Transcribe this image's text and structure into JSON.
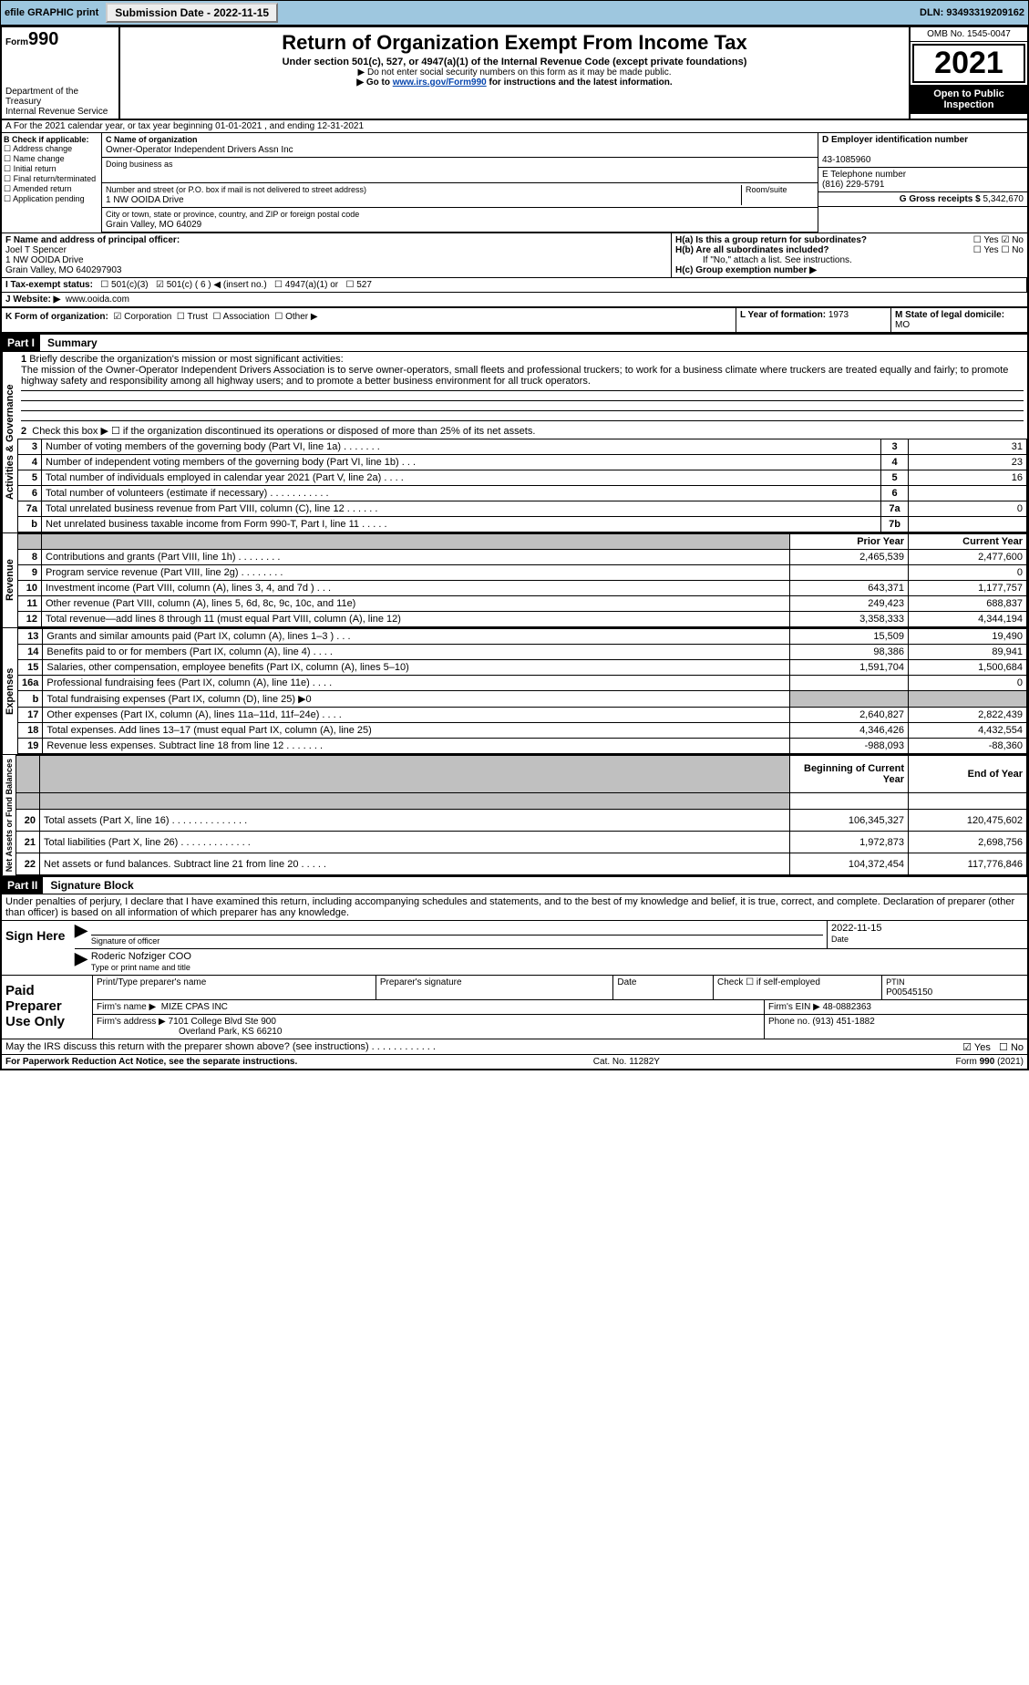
{
  "topbar": {
    "efile_label": "efile GRAPHIC print",
    "submission_btn": "Submission Date - 2022-11-15",
    "dln": "DLN: 93493319209162"
  },
  "header": {
    "form_label": "Form",
    "form_number": "990",
    "title": "Return of Organization Exempt From Income Tax",
    "sub1": "Under section 501(c), 527, or 4947(a)(1) of the Internal Revenue Code (except private foundations)",
    "sub2": "▶ Do not enter social security numbers on this form as it may be made public.",
    "sub3": "▶ Go to www.irs.gov/Form990 for instructions and the latest information.",
    "dept": "Department of the Treasury",
    "irs": "Internal Revenue Service",
    "omb": "OMB No. 1545-0047",
    "year": "2021",
    "open_public": "Open to Public Inspection"
  },
  "sectionA": {
    "calendar_line": "A For the 2021 calendar year, or tax year beginning 01-01-2021    , and ending 12-31-2021",
    "b_label": "B Check if applicable:",
    "b_items": [
      "Address change",
      "Name change",
      "Initial return",
      "Final return/terminated",
      "Amended return",
      "Application pending"
    ],
    "c_label": "C Name of organization",
    "org_name": "Owner-Operator Independent Drivers Assn Inc",
    "dba_label": "Doing business as",
    "street_label": "Number and street (or P.O. box if mail is not delivered to street address)",
    "room_label": "Room/suite",
    "street": "1 NW OOIDA Drive",
    "city_label": "City or town, state or province, country, and ZIP or foreign postal code",
    "city": "Grain Valley, MO  64029",
    "d_label": "D Employer identification number",
    "ein": "43-1085960",
    "e_label": "E Telephone number",
    "phone": "(816) 229-5791",
    "g_label": "G Gross receipts $",
    "gross": "5,342,670",
    "f_label": "F Name and address of principal officer:",
    "officer_name": "Joel T Spencer",
    "officer_addr1": "1 NW OOIDA Drive",
    "officer_addr2": "Grain Valley, MO  640297903",
    "ha_label": "H(a)  Is this a group return for subordinates?",
    "hb_label": "H(b)  Are all subordinates included?",
    "h_note": "If \"No,\" attach a list. See instructions.",
    "hc_label": "H(c)  Group exemption number ▶",
    "i_label": "I Tax-exempt status:",
    "i_opts": [
      "501(c)(3)",
      "501(c) ( 6 ) ◀ (insert no.)",
      "4947(a)(1) or",
      "527"
    ],
    "j_label": "J Website: ▶",
    "website": "www.ooida.com",
    "k_label": "K Form of organization:",
    "k_opts": [
      "Corporation",
      "Trust",
      "Association",
      "Other ▶"
    ],
    "l_label": "L Year of formation:",
    "l_val": "1973",
    "m_label": "M State of legal domicile:",
    "m_val": "MO",
    "yes": "Yes",
    "no": "No"
  },
  "part1": {
    "hdr": "Part I",
    "title": "Summary",
    "q1_label": "1",
    "q1_text": "Briefly describe the organization's mission or most significant activities:",
    "mission": "The mission of the Owner-Operator Independent Drivers Association is to serve owner-operators, small fleets and professional truckers; to work for a business climate where truckers are treated equally and fairly; to promote highway safety and responsibility among all highway users; and to promote a better business environment for all truck operators.",
    "q2": "Check this box ▶ ☐ if the organization discontinued its operations or disposed of more than 25% of its net assets.",
    "rows_gov": [
      {
        "n": "3",
        "d": "Number of voting members of the governing body (Part VI, line 1a)  .   .   .   .   .   .   .",
        "rn": "3",
        "v": "31"
      },
      {
        "n": "4",
        "d": "Number of independent voting members of the governing body (Part VI, line 1b)  .   .   .",
        "rn": "4",
        "v": "23"
      },
      {
        "n": "5",
        "d": "Total number of individuals employed in calendar year 2021 (Part V, line 2a)  .   .   .   .",
        "rn": "5",
        "v": "16"
      },
      {
        "n": "6",
        "d": "Total number of volunteers (estimate if necessary)   .   .   .   .   .   .   .   .   .   .   .",
        "rn": "6",
        "v": ""
      },
      {
        "n": "7a",
        "d": "Total unrelated business revenue from Part VIII, column (C), line 12   .   .   .   .   .   .",
        "rn": "7a",
        "v": "0"
      },
      {
        "n": "b",
        "d": "Net unrelated business taxable income from Form 990-T, Part I, line 11   .   .   .   .   .",
        "rn": "7b",
        "v": ""
      }
    ],
    "col_prior": "Prior Year",
    "col_current": "Current Year",
    "rows_rev": [
      {
        "n": "8",
        "d": "Contributions and grants (Part VIII, line 1h)   .   .   .   .   .   .   .   .",
        "p": "2,465,539",
        "c": "2,477,600"
      },
      {
        "n": "9",
        "d": "Program service revenue (Part VIII, line 2g)   .   .   .   .   .   .   .   .",
        "p": "",
        "c": "0"
      },
      {
        "n": "10",
        "d": "Investment income (Part VIII, column (A), lines 3, 4, and 7d )   .   .   .",
        "p": "643,371",
        "c": "1,177,757"
      },
      {
        "n": "11",
        "d": "Other revenue (Part VIII, column (A), lines 5, 6d, 8c, 9c, 10c, and 11e)",
        "p": "249,423",
        "c": "688,837"
      },
      {
        "n": "12",
        "d": "Total revenue—add lines 8 through 11 (must equal Part VIII, column (A), line 12)",
        "p": "3,358,333",
        "c": "4,344,194"
      }
    ],
    "rows_exp": [
      {
        "n": "13",
        "d": "Grants and similar amounts paid (Part IX, column (A), lines 1–3 )  .   .   .",
        "p": "15,509",
        "c": "19,490"
      },
      {
        "n": "14",
        "d": "Benefits paid to or for members (Part IX, column (A), line 4)   .   .   .   .",
        "p": "98,386",
        "c": "89,941"
      },
      {
        "n": "15",
        "d": "Salaries, other compensation, employee benefits (Part IX, column (A), lines 5–10)",
        "p": "1,591,704",
        "c": "1,500,684"
      },
      {
        "n": "16a",
        "d": "Professional fundraising fees (Part IX, column (A), line 11e)   .   .   .   .",
        "p": "",
        "c": "0"
      },
      {
        "n": "b",
        "d": "Total fundraising expenses (Part IX, column (D), line 25) ▶0",
        "p": "GREY",
        "c": "GREY"
      },
      {
        "n": "17",
        "d": "Other expenses (Part IX, column (A), lines 11a–11d, 11f–24e)   .   .   .   .",
        "p": "2,640,827",
        "c": "2,822,439"
      },
      {
        "n": "18",
        "d": "Total expenses. Add lines 13–17 (must equal Part IX, column (A), line 25)",
        "p": "4,346,426",
        "c": "4,432,554"
      },
      {
        "n": "19",
        "d": "Revenue less expenses. Subtract line 18 from line 12 .   .   .   .   .   .   .",
        "p": "-988,093",
        "c": "-88,360"
      }
    ],
    "col_begin": "Beginning of Current Year",
    "col_end": "End of Year",
    "rows_net": [
      {
        "n": "20",
        "d": "Total assets (Part X, line 16)  .   .   .   .   .   .   .   .   .   .   .   .   .   .",
        "p": "106,345,327",
        "c": "120,475,602"
      },
      {
        "n": "21",
        "d": "Total liabilities (Part X, line 26)  .   .   .   .   .   .   .   .   .   .   .   .   .",
        "p": "1,972,873",
        "c": "2,698,756"
      },
      {
        "n": "22",
        "d": "Net assets or fund balances. Subtract line 21 from line 20  .   .   .   .   .",
        "p": "104,372,454",
        "c": "117,776,846"
      }
    ],
    "vlabels": {
      "gov": "Activities & Governance",
      "rev": "Revenue",
      "exp": "Expenses",
      "net": "Net Assets or Fund Balances"
    }
  },
  "part2": {
    "hdr": "Part II",
    "title": "Signature Block",
    "penalty": "Under penalties of perjury, I declare that I have examined this return, including accompanying schedules and statements, and to the best of my knowledge and belief, it is true, correct, and complete. Declaration of preparer (other than officer) is based on all information of which preparer has any knowledge.",
    "sign_here": "Sign Here",
    "sig_officer": "Signature of officer",
    "sig_date": "Date",
    "sig_date_val": "2022-11-15",
    "officer_name": "Roderic Nofziger COO",
    "type_name": "Type or print name and title",
    "paid": "Paid Preparer Use Only",
    "print_name": "Print/Type preparer's name",
    "prep_sig": "Preparer's signature",
    "date": "Date",
    "check_self": "Check ☐ if self-employed",
    "ptin_label": "PTIN",
    "ptin": "P00545150",
    "firm_name_label": "Firm's name    ▶",
    "firm_name": "MIZE CPAS INC",
    "firm_ein_label": "Firm's EIN ▶",
    "firm_ein": "48-0882363",
    "firm_addr_label": "Firm's address ▶",
    "firm_addr1": "7101 College Blvd Ste 900",
    "firm_addr2": "Overland Park, KS  66210",
    "phone_label": "Phone no.",
    "phone": "(913) 451-1882",
    "discuss": "May the IRS discuss this return with the preparer shown above? (see instructions)   .   .   .   .   .   .   .   .   .   .   .   .",
    "yes": "Yes",
    "no": "No"
  },
  "footer": {
    "left": "For Paperwork Reduction Act Notice, see the separate instructions.",
    "mid": "Cat. No. 11282Y",
    "right": "Form 990 (2021)"
  }
}
